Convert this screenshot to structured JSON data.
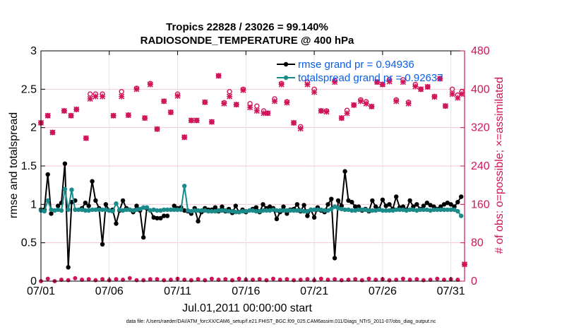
{
  "chart_data": {
    "type": "line",
    "title": "Tropics 22828 / 23026 = 99.140%",
    "subtitle": "RADIOSONDE_TEMPERATURE @ 400 hPa",
    "xlabel": "Jul.01,2011 00:00:00 start",
    "ylabel": "rmse and totalspread",
    "y2label": "# of obs: o=possible; ×=assimilated",
    "ylim": [
      0,
      3
    ],
    "y2lim": [
      0,
      480
    ],
    "xlim": [
      0,
      31
    ],
    "xticks": [
      0,
      5,
      10,
      15,
      20,
      25,
      30
    ],
    "xticklabels": [
      "07/01",
      "07/06",
      "07/11",
      "07/16",
      "07/21",
      "07/26",
      "07/31"
    ],
    "yticks": [
      "0",
      "0.5",
      "1",
      "1.5",
      "2",
      "2.5",
      "3"
    ],
    "y2ticks": [
      "0",
      "80",
      "160",
      "240",
      "320",
      "400",
      "480"
    ],
    "legend": {
      "position": "top-right",
      "entries": [
        "rmse grand pr = 0.94936",
        "totalspread grand pr = 0.92637"
      ]
    },
    "footnote": "data file: /Users/raeder/DAI/ATM_forcXX/CAM6_setup/f.e21.FHIST_BGC.f09_025.CAM6assim.011/Diags_NTrS_2011-07/obs_diag_output.nc",
    "colors": {
      "rmse": "#000000",
      "spread": "#1a8a8a",
      "obs": "#d1145a",
      "legend_text": "#0a5ee8",
      "right_axis": "#d1145a"
    },
    "x": [
      0,
      0.25,
      0.5,
      0.75,
      1,
      1.25,
      1.5,
      1.75,
      2,
      2.25,
      2.5,
      2.75,
      3,
      3.25,
      3.5,
      3.75,
      4,
      4.25,
      4.5,
      4.75,
      5,
      5.25,
      5.5,
      5.75,
      6,
      6.25,
      6.5,
      6.75,
      7,
      7.25,
      7.5,
      7.75,
      8,
      8.25,
      8.5,
      8.75,
      9,
      9.25,
      9.5,
      9.75,
      10,
      10.25,
      10.5,
      10.75,
      11,
      11.25,
      11.5,
      11.75,
      12,
      12.25,
      12.5,
      12.75,
      13,
      13.25,
      13.5,
      13.75,
      14,
      14.25,
      14.5,
      14.75,
      15,
      15.25,
      15.5,
      15.75,
      16,
      16.25,
      16.5,
      16.75,
      17,
      17.25,
      17.5,
      17.75,
      18,
      18.25,
      18.5,
      18.75,
      19,
      19.25,
      19.5,
      19.75,
      20,
      20.25,
      20.5,
      20.75,
      21,
      21.25,
      21.5,
      21.75,
      22,
      22.25,
      22.5,
      22.75,
      23,
      23.25,
      23.5,
      23.75,
      24,
      24.25,
      24.5,
      24.75,
      25,
      25.25,
      25.5,
      25.75,
      26,
      26.25,
      26.5,
      26.75,
      27,
      27.25,
      27.5,
      27.75,
      28,
      28.25,
      28.5,
      28.75,
      29,
      29.25,
      29.5,
      29.75,
      30,
      30.25,
      30.5,
      30.75
    ],
    "series": [
      {
        "name": "rmse",
        "values": [
          0.93,
          0.93,
          1.39,
          0.88,
          null,
          0.98,
          1.02,
          1.53,
          0.18,
          1.03,
          1.05,
          null,
          0.95,
          1.02,
          0.98,
          1.3,
          1.05,
          0.95,
          0.48,
          1.0,
          0.92,
          0.93,
          0.75,
          0.92,
          1.05,
          0.95,
          0.93,
          0.9,
          0.98,
          0.92,
          0.57,
          0.95,
          0.92,
          0.83,
          0.82,
          0.82,
          0.85,
          0.85,
          null,
          0.98,
          0.95,
          0.96,
          0.92,
          0.91,
          0.88,
          0.95,
          0.78,
          0.9,
          0.95,
          0.93,
          0.93,
          0.96,
          0.91,
          0.97,
          0.91,
          0.94,
          0.89,
          0.98,
          0.9,
          0.93,
          0.9,
          null,
          0.94,
          0.96,
          0.9,
          1.0,
          0.95,
          0.97,
          0.95,
          0.81,
          0.9,
          0.97,
          0.88,
          0.93,
          0.94,
          1.0,
          0.91,
          0.99,
          0.85,
          0.93,
          0.83,
          0.96,
          0.92,
          0.9,
          1.0,
          1.07,
          0.3,
          1.05,
          0.98,
          1.43,
          1.05,
          1.03,
          0.97,
          0.97,
          0.92,
          0.94,
          0.91,
          1.05,
          0.97,
          0.94,
          1.06,
          0.98,
          1.0,
          0.94,
          1.1,
          0.96,
          0.97,
          0.93,
          1.05,
          0.97,
          1.0,
          0.94,
          0.98,
          1.02,
          0.99,
          0.97,
          0.94,
          0.97,
          1.0,
          1.02,
          1.0,
          0.97,
          1.03,
          1.1
        ],
        "values_note": "12-hourly style estimates read from gridlines"
      },
      {
        "name": "totalspread",
        "values": [
          0.92,
          0.91,
          1.05,
          0.93,
          0.92,
          0.93,
          0.92,
          1.2,
          0.93,
          1.19,
          0.93,
          0.93,
          0.93,
          0.92,
          0.92,
          0.93,
          0.93,
          0.93,
          0.93,
          0.93,
          0.92,
          0.91,
          1.01,
          0.93,
          0.92,
          0.93,
          0.93,
          0.92,
          0.93,
          0.94,
          0.96,
          0.96,
          0.92,
          0.93,
          0.92,
          0.92,
          0.93,
          0.93,
          0.93,
          0.93,
          0.93,
          0.93,
          1.24,
          0.92,
          0.91,
          0.92,
          0.92,
          0.92,
          0.92,
          0.91,
          0.91,
          0.91,
          0.92,
          0.92,
          0.92,
          0.91,
          0.91,
          0.9,
          0.9,
          0.91,
          0.91,
          0.92,
          0.92,
          0.91,
          0.91,
          0.92,
          0.92,
          0.92,
          0.93,
          0.92,
          0.92,
          0.92,
          0.92,
          0.92,
          0.92,
          0.92,
          0.92,
          0.91,
          0.91,
          0.93,
          0.93,
          0.93,
          0.93,
          0.92,
          0.92,
          0.94,
          0.97,
          0.95,
          0.94,
          0.93,
          0.93,
          0.92,
          0.92,
          0.93,
          0.93,
          0.93,
          0.92,
          0.92,
          0.92,
          0.93,
          0.92,
          0.92,
          0.92,
          0.92,
          0.93,
          0.93,
          0.93,
          0.92,
          0.93,
          0.93,
          0.92,
          0.93,
          0.93,
          0.93,
          0.92,
          0.93,
          0.93,
          0.93,
          0.93,
          0.93,
          0.93,
          0.93,
          0.91,
          0.85
        ]
      },
      {
        "name": "obs_possible",
        "axis": "right",
        "values": [
          [
            0,
            330
          ],
          [
            0.5,
            345
          ],
          [
            0.85,
            310
          ],
          [
            1.7,
            355
          ],
          [
            2.2,
            345
          ],
          [
            2.6,
            358
          ],
          [
            3.3,
            298
          ],
          [
            3.6,
            390
          ],
          [
            4.0,
            390
          ],
          [
            4.5,
            390
          ],
          [
            5.3,
            345
          ],
          [
            5.9,
            395
          ],
          [
            6.4,
            346
          ],
          [
            7.0,
            402
          ],
          [
            7.6,
            340
          ],
          [
            8.0,
            412
          ],
          [
            8.5,
            317
          ],
          [
            9.0,
            375
          ],
          [
            9.5,
            352
          ],
          [
            10.0,
            390
          ],
          [
            10.5,
            300
          ],
          [
            11.0,
            335
          ],
          [
            11.4,
            335
          ],
          [
            12.0,
            373
          ],
          [
            12.5,
            332
          ],
          [
            13.0,
            428
          ],
          [
            13.4,
            372
          ],
          [
            13.8,
            395
          ],
          [
            14.3,
            368
          ],
          [
            14.8,
            400
          ],
          [
            15.3,
            370
          ],
          [
            15.8,
            365
          ],
          [
            16.3,
            355
          ],
          [
            16.6,
            350
          ],
          [
            17.1,
            380
          ],
          [
            17.6,
            412
          ],
          [
            18.0,
            374
          ],
          [
            18.5,
            330
          ],
          [
            19.0,
            322
          ],
          [
            19.5,
            415
          ],
          [
            20.0,
            400
          ],
          [
            20.5,
            355
          ],
          [
            20.9,
            355
          ],
          [
            21.5,
            418
          ],
          [
            22.0,
            340
          ],
          [
            22.4,
            356
          ],
          [
            22.9,
            367
          ],
          [
            23.4,
            378
          ],
          [
            23.8,
            374
          ],
          [
            24.2,
            364
          ],
          [
            24.6,
            415
          ],
          [
            25.0,
            410
          ],
          [
            25.5,
            420
          ],
          [
            26.0,
            378
          ],
          [
            26.5,
            420
          ],
          [
            26.9,
            373
          ],
          [
            27.4,
            410
          ],
          [
            27.8,
            400
          ],
          [
            28.3,
            405
          ],
          [
            28.8,
            385
          ],
          [
            29.2,
            422
          ],
          [
            29.6,
            365
          ],
          [
            30.1,
            400
          ],
          [
            30.5,
            388
          ],
          [
            30.8,
            395
          ],
          [
            31.0,
            35
          ]
        ]
      },
      {
        "name": "obs_assimilated",
        "axis": "right",
        "values": [
          [
            0,
            330
          ],
          [
            0.5,
            345
          ],
          [
            0.85,
            310
          ],
          [
            1.7,
            355
          ],
          [
            2.2,
            345
          ],
          [
            2.6,
            358
          ],
          [
            3.3,
            298
          ],
          [
            3.6,
            380
          ],
          [
            4.0,
            385
          ],
          [
            4.5,
            385
          ],
          [
            5.3,
            345
          ],
          [
            5.9,
            385
          ],
          [
            6.4,
            346
          ],
          [
            7.0,
            400
          ],
          [
            7.6,
            340
          ],
          [
            8.0,
            410
          ],
          [
            8.5,
            317
          ],
          [
            9.0,
            375
          ],
          [
            9.5,
            352
          ],
          [
            10.0,
            386
          ],
          [
            10.5,
            300
          ],
          [
            11.0,
            335
          ],
          [
            11.4,
            335
          ],
          [
            12.0,
            373
          ],
          [
            12.5,
            332
          ],
          [
            13.0,
            428
          ],
          [
            13.4,
            370
          ],
          [
            13.8,
            385
          ],
          [
            14.3,
            368
          ],
          [
            14.8,
            398
          ],
          [
            15.3,
            362
          ],
          [
            15.8,
            355
          ],
          [
            16.3,
            350
          ],
          [
            16.6,
            350
          ],
          [
            17.1,
            375
          ],
          [
            17.6,
            410
          ],
          [
            18.0,
            372
          ],
          [
            18.5,
            330
          ],
          [
            19.0,
            318
          ],
          [
            19.5,
            410
          ],
          [
            20.0,
            394
          ],
          [
            20.5,
            355
          ],
          [
            20.9,
            353
          ],
          [
            21.5,
            415
          ],
          [
            22.0,
            340
          ],
          [
            22.4,
            350
          ],
          [
            22.9,
            367
          ],
          [
            23.4,
            375
          ],
          [
            23.8,
            370
          ],
          [
            24.2,
            364
          ],
          [
            24.6,
            415
          ],
          [
            25.0,
            410
          ],
          [
            25.5,
            416
          ],
          [
            26.0,
            375
          ],
          [
            26.5,
            415
          ],
          [
            26.9,
            370
          ],
          [
            27.4,
            406
          ],
          [
            27.8,
            400
          ],
          [
            28.3,
            405
          ],
          [
            28.8,
            384
          ],
          [
            29.2,
            422
          ],
          [
            29.6,
            365
          ],
          [
            30.1,
            390
          ],
          [
            30.5,
            382
          ],
          [
            30.8,
            390
          ],
          [
            31.0,
            35
          ]
        ]
      },
      {
        "name": "obs_zero_level",
        "axis": "right",
        "values": [
          [
            0,
            0
          ],
          [
            0.5,
            5
          ],
          [
            1.0,
            0
          ],
          [
            1.5,
            3
          ],
          [
            2.0,
            2
          ],
          [
            2.5,
            6
          ],
          [
            3.0,
            3
          ],
          [
            3.5,
            4
          ],
          [
            4.0,
            2
          ],
          [
            4.5,
            4
          ],
          [
            5.0,
            2
          ],
          [
            5.5,
            4
          ],
          [
            6.0,
            3
          ],
          [
            6.5,
            6
          ],
          [
            7.0,
            2
          ],
          [
            7.5,
            2
          ],
          [
            8.0,
            4
          ],
          [
            8.5,
            4
          ],
          [
            9.0,
            2
          ],
          [
            9.5,
            3
          ],
          [
            10.0,
            5
          ],
          [
            10.5,
            3
          ],
          [
            11.0,
            2
          ],
          [
            11.5,
            4
          ],
          [
            12.0,
            2
          ],
          [
            12.5,
            5
          ],
          [
            13.0,
            3
          ],
          [
            13.5,
            4
          ],
          [
            14.0,
            2
          ],
          [
            14.5,
            5
          ],
          [
            15.0,
            3
          ],
          [
            15.5,
            3
          ],
          [
            16.0,
            4
          ],
          [
            16.5,
            2
          ],
          [
            17.0,
            5
          ],
          [
            17.5,
            3
          ],
          [
            18.0,
            4
          ],
          [
            18.5,
            2
          ],
          [
            19.0,
            3
          ],
          [
            19.5,
            4
          ],
          [
            20.0,
            2
          ],
          [
            20.5,
            5
          ],
          [
            21.0,
            3
          ],
          [
            21.5,
            4
          ],
          [
            22.0,
            2
          ],
          [
            22.5,
            3
          ],
          [
            23.0,
            4
          ],
          [
            23.5,
            2
          ],
          [
            24.0,
            5
          ],
          [
            24.5,
            3
          ],
          [
            25.0,
            4
          ],
          [
            25.5,
            2
          ],
          [
            26.0,
            3
          ],
          [
            26.5,
            5
          ],
          [
            27.0,
            3
          ],
          [
            27.5,
            4
          ],
          [
            28.0,
            2
          ],
          [
            28.5,
            3
          ],
          [
            29.0,
            5
          ],
          [
            29.5,
            3
          ],
          [
            30.0,
            4
          ],
          [
            30.5,
            3
          ]
        ]
      }
    ]
  }
}
